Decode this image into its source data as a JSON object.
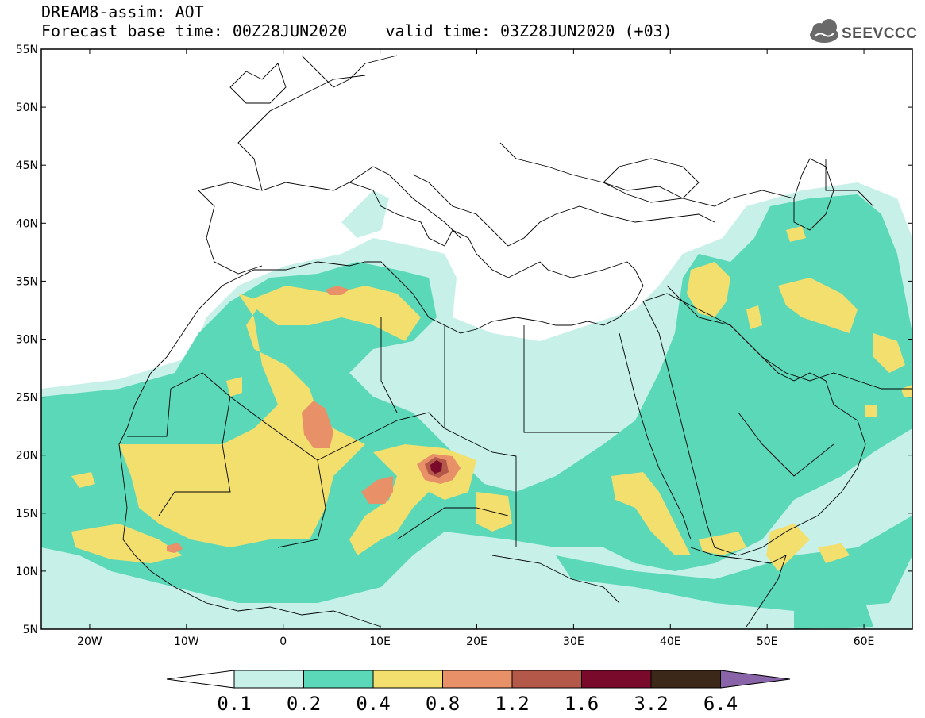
{
  "title": {
    "line1": "DREAM8-assim: AOT",
    "line2": "Forecast base time: 00Z28JUN2020    valid time: 03Z28JUN2020 (+03)"
  },
  "logo": {
    "text": "SEEVCCC",
    "icon": "cloud-icon"
  },
  "map": {
    "lon_range": [
      -25,
      65
    ],
    "lat_range": [
      5,
      55
    ],
    "lat_ticks": [
      "55N",
      "50N",
      "45N",
      "40N",
      "35N",
      "30N",
      "25N",
      "20N",
      "15N",
      "10N",
      "5N"
    ],
    "lon_ticks": [
      "20W",
      "10W",
      "0",
      "10E",
      "20E",
      "30E",
      "40E",
      "50E",
      "60E"
    ]
  },
  "colorbar": {
    "levels": [
      "0.1",
      "0.2",
      "0.4",
      "0.8",
      "1.2",
      "1.6",
      "3.2",
      "6.4"
    ],
    "colors": [
      "#c6f0e8",
      "#5ad8b8",
      "#f2df6e",
      "#e89068",
      "#b4584a",
      "#7a0a2c",
      "#3c2818",
      "#8a64a8"
    ],
    "under_color": "#ffffff"
  }
}
